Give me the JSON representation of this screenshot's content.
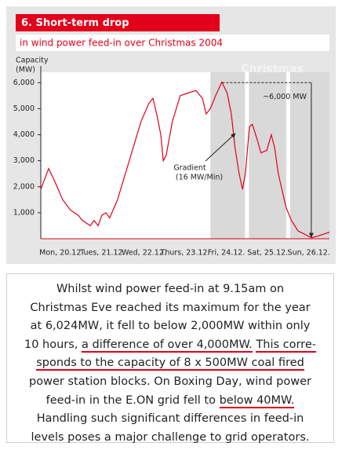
{
  "chart_data": {
    "type": "line",
    "title": "6. Short-term drop",
    "subtitle": "in wind power feed-in over Christmas 2004",
    "y_label": [
      "Capacity",
      "(MW)"
    ],
    "categories": [
      "Mon, 20.12.",
      "Tues, 21.12.",
      "Wed, 22.12.",
      "Thurs, 23.12.",
      "Fri, 24.12.",
      "Sat, 25.12.",
      "Sun, 26.12."
    ],
    "xlim": [
      0,
      7
    ],
    "x": [
      0,
      0.19,
      0.34,
      0.53,
      0.72,
      0.91,
      1.01,
      1.2,
      1.29,
      1.39,
      1.48,
      1.58,
      1.67,
      1.86,
      2.05,
      2.24,
      2.43,
      2.62,
      2.72,
      2.81,
      2.91,
      2.97,
      3.04,
      3.19,
      3.38,
      3.57,
      3.76,
      3.92,
      4.01,
      4.11,
      4.24,
      4.39,
      4.52,
      4.62,
      4.71,
      4.81,
      4.89,
      4.96,
      5.06,
      5.13,
      5.25,
      5.34,
      5.48,
      5.59,
      5.67,
      5.76,
      5.86,
      5.95,
      6.08,
      6.24,
      6.43,
      6.56,
      6.71,
      6.9,
      7
    ],
    "values": [
      1900,
      2700,
      2200,
      1500,
      1100,
      900,
      700,
      500,
      700,
      500,
      900,
      1000,
      800,
      1500,
      2500,
      3500,
      4500,
      5200,
      5400,
      4800,
      4000,
      3000,
      3200,
      4500,
      5500,
      5600,
      5700,
      5400,
      4800,
      5000,
      5500,
      6024,
      5600,
      4800,
      3500,
      2500,
      1900,
      2500,
      4300,
      4400,
      3800,
      3300,
      3400,
      4000,
      3500,
      2500,
      1800,
      1200,
      700,
      300,
      150,
      40,
      100,
      200,
      250
    ],
    "color": "#e2001a",
    "ylim": [
      0,
      6400
    ],
    "yticks": [
      {
        "value": 1000,
        "label": "1,000"
      },
      {
        "value": 2000,
        "label": "2,000"
      },
      {
        "value": 3000,
        "label": "3,000"
      },
      {
        "value": 4000,
        "label": "4,000"
      },
      {
        "value": 5000,
        "label": "5,000"
      },
      {
        "value": 6000,
        "label": "6,000"
      }
    ],
    "highlight": {
      "label": "Christmas",
      "from": 4,
      "to": 7
    },
    "drop_annotation": {
      "label": "~6,000 MW",
      "from": 6000,
      "to": 0,
      "x": 6.56
    },
    "gradient_annotation": {
      "label": [
        "Gradient",
        "(16 MW/Min)"
      ]
    }
  },
  "text_box": {
    "lines": [
      [
        {
          "text": "Whilst wind power feed-in at 9.15am on",
          "underline": false
        }
      ],
      [
        {
          "text": "Christmas Eve reached its maximum for the year",
          "underline": false
        }
      ],
      [
        {
          "text": "at 6,024MW, it fell to below 2,000MW within only",
          "underline": false
        }
      ],
      [
        {
          "text": "10 hours, ",
          "underline": false
        },
        {
          "text": "a difference of over 4,000MW.",
          "underline": true
        },
        {
          "text": " ",
          "underline": false
        },
        {
          "text": "This corre-",
          "underline": true
        }
      ],
      [
        {
          "text": "sponds to the capacity of 8 x 500MW coal fired",
          "underline": true
        }
      ],
      [
        {
          "text": "power station blocks. On Boxing Day, wind power",
          "underline": false
        }
      ],
      [
        {
          "text": "feed-in in the E.ON grid fell to ",
          "underline": false
        },
        {
          "text": "below 40MW.",
          "underline": true
        }
      ],
      [
        {
          "text": "Handling such significant differences in feed-in",
          "underline": false
        }
      ],
      [
        {
          "text": "levels poses a major challenge to grid operators.",
          "underline": false
        }
      ]
    ]
  }
}
